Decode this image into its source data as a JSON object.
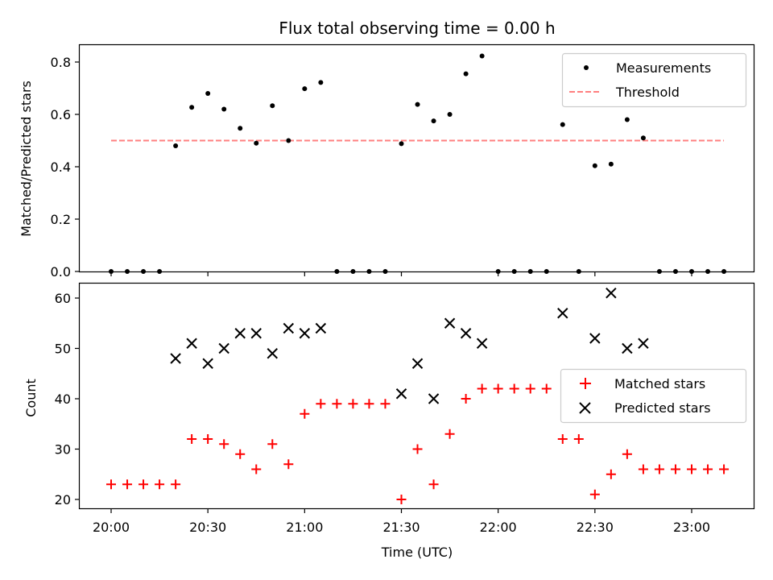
{
  "chart_data": [
    {
      "type": "scatter",
      "title": "Flux total observing time = 0.00 h",
      "xlabel": "",
      "ylabel": "Matched/Predicted stars",
      "ylim": [
        0,
        0.86
      ],
      "yticks": [
        "0.0",
        "0.2",
        "0.4",
        "0.6",
        "0.8"
      ],
      "legend": "top-right",
      "series": [
        {
          "name": "Measurements",
          "style": "dot",
          "color": "#000000",
          "points": [
            [
              "20:00",
              0
            ],
            [
              "20:05",
              0
            ],
            [
              "20:10",
              0
            ],
            [
              "20:15",
              0
            ],
            [
              "20:20",
              0.48
            ],
            [
              "20:25",
              0.627
            ],
            [
              "20:30",
              0.68
            ],
            [
              "20:35",
              0.62
            ],
            [
              "20:40",
              0.547
            ],
            [
              "20:45",
              0.49
            ],
            [
              "20:50",
              0.633
            ],
            [
              "20:55",
              0.5
            ],
            [
              "21:00",
              0.698
            ],
            [
              "21:05",
              0.722
            ],
            [
              "21:10",
              0
            ],
            [
              "21:15",
              0
            ],
            [
              "21:20",
              0
            ],
            [
              "21:25",
              0
            ],
            [
              "21:30",
              0.488
            ],
            [
              "21:35",
              0.638
            ],
            [
              "21:40",
              0.575
            ],
            [
              "21:45",
              0.6
            ],
            [
              "21:50",
              0.755
            ],
            [
              "21:55",
              0.823
            ],
            [
              "22:00",
              0
            ],
            [
              "22:05",
              0
            ],
            [
              "22:10",
              0
            ],
            [
              "22:15",
              0
            ],
            [
              "22:20",
              0.561
            ],
            [
              "22:25",
              0
            ],
            [
              "22:30",
              0.404
            ],
            [
              "22:35",
              0.41
            ],
            [
              "22:40",
              0.58
            ],
            [
              "22:45",
              0.51
            ],
            [
              "22:50",
              0
            ],
            [
              "22:55",
              0
            ],
            [
              "23:00",
              0
            ],
            [
              "23:05",
              0
            ],
            [
              "23:10",
              0
            ]
          ]
        },
        {
          "name": "Threshold",
          "style": "dashed-line",
          "color": "#ff7f7f",
          "points": [
            [
              "20:00",
              0.5
            ],
            [
              "23:10",
              0.5
            ]
          ]
        }
      ]
    },
    {
      "type": "scatter",
      "title": "",
      "xlabel": "Time (UTC)",
      "ylabel": "Count",
      "ylim": [
        18.1,
        63.2
      ],
      "yticks": [
        "20",
        "30",
        "40",
        "50",
        "60"
      ],
      "xticks": [
        "20:00",
        "20:30",
        "21:00",
        "21:30",
        "22:00",
        "22:30",
        "23:00"
      ],
      "legend": "center-right",
      "series": [
        {
          "name": "Matched stars",
          "marker": "plus",
          "color": "#ff0000",
          "points": [
            [
              "20:00",
              23
            ],
            [
              "20:05",
              23
            ],
            [
              "20:10",
              23
            ],
            [
              "20:15",
              23
            ],
            [
              "20:20",
              23
            ],
            [
              "20:25",
              32
            ],
            [
              "20:30",
              32
            ],
            [
              "20:35",
              31
            ],
            [
              "20:40",
              29
            ],
            [
              "20:45",
              26
            ],
            [
              "20:50",
              31
            ],
            [
              "20:55",
              27
            ],
            [
              "21:00",
              37
            ],
            [
              "21:05",
              39
            ],
            [
              "21:10",
              39
            ],
            [
              "21:15",
              39
            ],
            [
              "21:20",
              39
            ],
            [
              "21:25",
              39
            ],
            [
              "21:30",
              20
            ],
            [
              "21:35",
              30
            ],
            [
              "21:40",
              23
            ],
            [
              "21:45",
              33
            ],
            [
              "21:50",
              40
            ],
            [
              "21:55",
              42
            ],
            [
              "22:00",
              42
            ],
            [
              "22:05",
              42
            ],
            [
              "22:10",
              42
            ],
            [
              "22:15",
              42
            ],
            [
              "22:20",
              32
            ],
            [
              "22:25",
              32
            ],
            [
              "22:30",
              21
            ],
            [
              "22:35",
              25
            ],
            [
              "22:40",
              29
            ],
            [
              "22:45",
              26
            ],
            [
              "22:50",
              26
            ],
            [
              "22:55",
              26
            ],
            [
              "23:00",
              26
            ],
            [
              "23:05",
              26
            ],
            [
              "23:10",
              26
            ]
          ]
        },
        {
          "name": "Predicted stars",
          "marker": "x",
          "color": "#000000",
          "points": [
            [
              "20:20",
              48
            ],
            [
              "20:25",
              51
            ],
            [
              "20:30",
              47
            ],
            [
              "20:35",
              50
            ],
            [
              "20:40",
              53
            ],
            [
              "20:45",
              53
            ],
            [
              "20:50",
              49
            ],
            [
              "20:55",
              54
            ],
            [
              "21:00",
              53
            ],
            [
              "21:05",
              54
            ],
            [
              "21:30",
              41
            ],
            [
              "21:35",
              47
            ],
            [
              "21:40",
              40
            ],
            [
              "21:45",
              55
            ],
            [
              "21:50",
              53
            ],
            [
              "21:55",
              51
            ],
            [
              "22:20",
              57
            ],
            [
              "22:30",
              52
            ],
            [
              "22:35",
              61
            ],
            [
              "22:40",
              50
            ],
            [
              "22:45",
              51
            ]
          ]
        }
      ]
    }
  ]
}
